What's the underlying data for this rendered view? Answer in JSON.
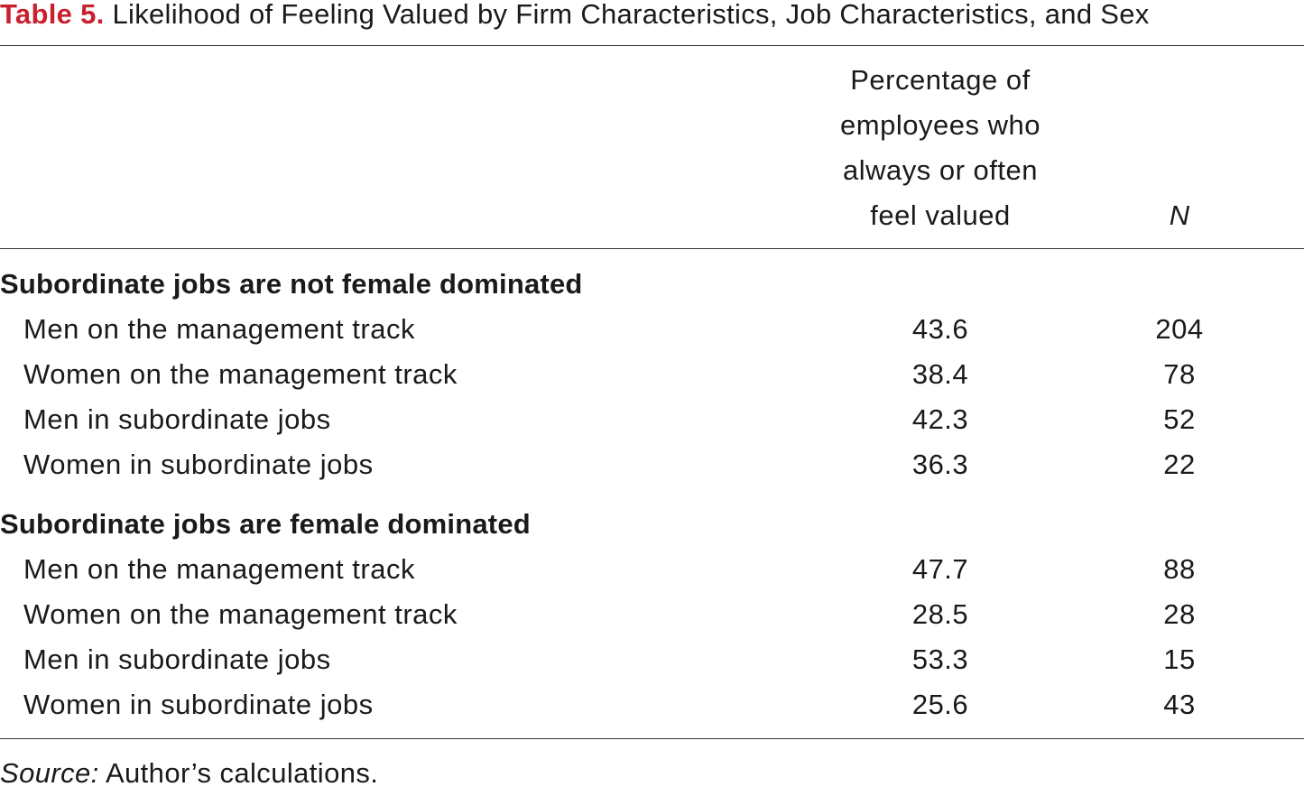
{
  "caption": {
    "label": "Table 5.",
    "title": "Likelihood of Feeling Valued by Firm Characteristics, Job Characteristics, and Sex"
  },
  "header": {
    "pct_lines": [
      "Percentage of",
      "employees who",
      "always or often",
      "feel valued"
    ],
    "n_label": "N"
  },
  "groups": [
    {
      "heading": "Subordinate jobs are not female dominated",
      "rows": [
        {
          "label": "Men on the management track",
          "pct": "43.6",
          "n": "204"
        },
        {
          "label": "Women on the management track",
          "pct": "38.4",
          "n": "78"
        },
        {
          "label": "Men in subordinate jobs",
          "pct": "42.3",
          "n": "52"
        },
        {
          "label": "Women in subordinate jobs",
          "pct": "36.3",
          "n": "22"
        }
      ]
    },
    {
      "heading": "Subordinate jobs are female dominated",
      "rows": [
        {
          "label": "Men on the management track",
          "pct": "47.7",
          "n": "88"
        },
        {
          "label": "Women on the management track",
          "pct": "28.5",
          "n": "28"
        },
        {
          "label": "Men in subordinate jobs",
          "pct": "53.3",
          "n": "15"
        },
        {
          "label": "Women in subordinate jobs",
          "pct": "25.6",
          "n": "43"
        }
      ]
    }
  ],
  "footnote": {
    "source_label": "Source:",
    "source_text": " Author’s calculations."
  },
  "colors": {
    "caption_label": "#c8202f",
    "text": "#1a1a1a",
    "rule": "#333333"
  }
}
